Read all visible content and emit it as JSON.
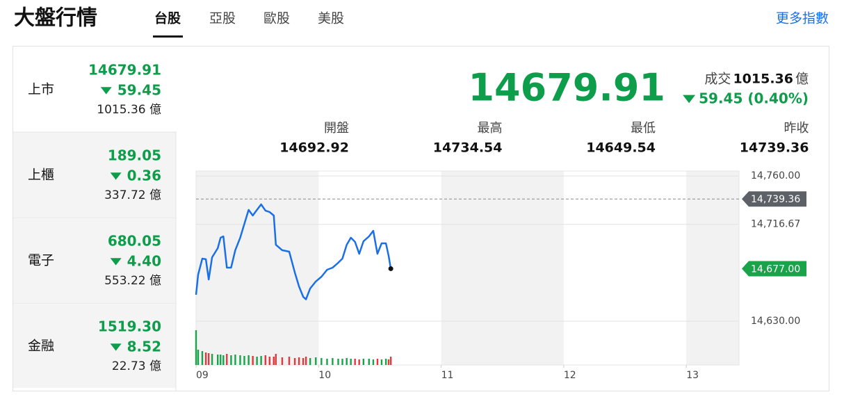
{
  "header": {
    "title": "大盤行情",
    "tabs": [
      "台股",
      "亞股",
      "歐股",
      "美股"
    ],
    "more": "更多指數"
  },
  "indices": [
    {
      "name": "上市",
      "value": "14679.91",
      "change": "59.45",
      "volume": "1015.36 億"
    },
    {
      "name": "上櫃",
      "value": "189.05",
      "change": "0.36",
      "volume": "337.72 億"
    },
    {
      "name": "電子",
      "value": "680.05",
      "change": "4.40",
      "volume": "553.22 億"
    },
    {
      "name": "金融",
      "value": "1519.30",
      "change": "8.52",
      "volume": "22.73 億"
    }
  ],
  "summary": {
    "value": "14679.91",
    "volume_label": "成交",
    "volume": "1015.36",
    "volume_unit": "億",
    "change": "59.45 (0.40%)",
    "stats": [
      {
        "label": "開盤",
        "value": "14692.92"
      },
      {
        "label": "最高",
        "value": "14734.54"
      },
      {
        "label": "最低",
        "value": "14649.54"
      },
      {
        "label": "昨收",
        "value": "14739.36"
      }
    ]
  },
  "chart_data": {
    "type": "line",
    "x": [
      9.0,
      9.017,
      9.051,
      9.08,
      9.103,
      9.131,
      9.177,
      9.2,
      9.223,
      9.251,
      9.286,
      9.32,
      9.36,
      9.394,
      9.429,
      9.463,
      9.497,
      9.531,
      9.566,
      9.6,
      9.634,
      9.651,
      9.703,
      9.76,
      9.806,
      9.84,
      9.874,
      9.897,
      9.931,
      9.977,
      10.023,
      10.069,
      10.114,
      10.16,
      10.194,
      10.229,
      10.263,
      10.297,
      10.331,
      10.366,
      10.411,
      10.446,
      10.48,
      10.514,
      10.549,
      10.571,
      10.589
    ],
    "series": [
      {
        "color": "#1a6fe6",
        "values": [
          14653.6,
          14671.7,
          14686.0,
          14685.4,
          14667.3,
          14687.2,
          14695.3,
          14704.7,
          14705.9,
          14677.9,
          14677.9,
          14693.5,
          14704.7,
          14717.1,
          14729.6,
          14724.6,
          14729.6,
          14734.54,
          14729.0,
          14727.7,
          14724.6,
          14698.4,
          14693.5,
          14692.2,
          14673.5,
          14661.1,
          14651.8,
          14649.54,
          14659.2,
          14665.5,
          14669.8,
          14676.0,
          14677.9,
          14682.3,
          14686.0,
          14698.4,
          14704.7,
          14700.9,
          14690.3,
          14701.5,
          14705.9,
          14710.9,
          14690.3,
          14699.7,
          14699.7,
          14688.5,
          14677.0
        ]
      }
    ],
    "volume": {
      "values": [
        50,
        22,
        20,
        18,
        17,
        16,
        15,
        15,
        14,
        16,
        14,
        15,
        14,
        13,
        14,
        13,
        12,
        13,
        14,
        12,
        12,
        16,
        11,
        12,
        10,
        11,
        10,
        12,
        10,
        11,
        10,
        9,
        10,
        9,
        9,
        10,
        9,
        9,
        8,
        9,
        9,
        8,
        9,
        8,
        9,
        8,
        12
      ],
      "ylim": [
        0,
        55
      ],
      "up_color": "#1aa34a",
      "down_color": "#e5383b"
    },
    "xlim": [
      9,
      13.43
    ],
    "xticks": [
      {
        "value": 9,
        "label": "09"
      },
      10,
      11,
      12,
      13
    ],
    "ylim": [
      14625.0,
      14764.4
    ],
    "yticks": [
      {
        "value": 14760,
        "label": "14,760.00"
      },
      {
        "value": 14716.67,
        "label": "14,716.67"
      },
      {
        "value": 14630,
        "label": "14,630.00"
      }
    ],
    "reference_line": {
      "value": 14739.36,
      "label": "14,739.36"
    },
    "last": {
      "value": 14677.0,
      "label": "14,677.00"
    },
    "grid": true
  }
}
